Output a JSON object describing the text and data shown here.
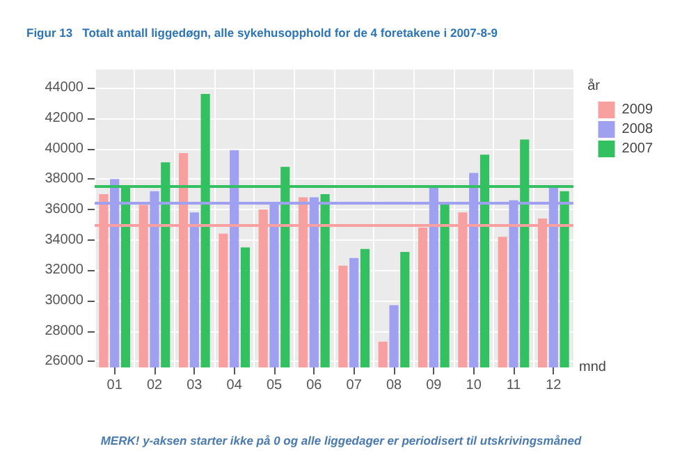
{
  "chart_data": {
    "type": "bar",
    "title": "Figur 13   Totalt antall liggedøgn, alle sykehusopphold for de 4 foretakene i 2007-8-9",
    "xlabel": "mnd",
    "legend_title": "år",
    "annotations": [
      "MERK! y-aksen starter ikke på 0 og alle liggedager er periodisert til utskrivingsmåned"
    ],
    "categories": [
      "01",
      "02",
      "03",
      "04",
      "05",
      "06",
      "07",
      "08",
      "09",
      "10",
      "11",
      "12"
    ],
    "series": [
      {
        "name": "2009",
        "color": "#f8a0a0",
        "values": [
          37000,
          36300,
          39700,
          34400,
          36000,
          36800,
          32300,
          27300,
          34800,
          35800,
          34200,
          35400
        ]
      },
      {
        "name": "2008",
        "color": "#a0a0f0",
        "values": [
          38000,
          37200,
          35800,
          39900,
          36500,
          36800,
          32800,
          29700,
          37600,
          38400,
          36600,
          37600
        ]
      },
      {
        "name": "2007",
        "color": "#33c060",
        "values": [
          37500,
          39100,
          43600,
          33500,
          38800,
          37000,
          33400,
          33200,
          36400,
          39600,
          40600,
          37200
        ]
      }
    ],
    "ref_lines": [
      {
        "axis": "y",
        "value": 35000,
        "color": "#f8a0a0"
      },
      {
        "axis": "y",
        "value": 36400,
        "color": "#a0a0f0"
      },
      {
        "axis": "y",
        "value": 37500,
        "color": "#33c060"
      }
    ],
    "ylim": [
      25600,
      45200
    ],
    "yticks": [
      26000,
      28000,
      30000,
      32000,
      34000,
      36000,
      38000,
      40000,
      42000,
      44000
    ],
    "grid": true,
    "legend": "top right"
  }
}
